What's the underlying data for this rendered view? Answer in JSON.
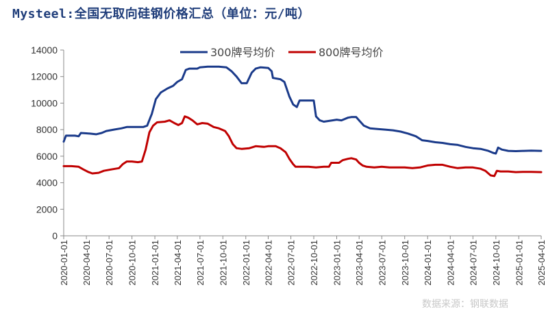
{
  "header": {
    "title": "Mysteel:全国无取向硅钢价格汇总（单位：元/吨）"
  },
  "watermark": "数据来源：钢联数据",
  "colors": {
    "series1": "#1a3a8a",
    "series2": "#c00000",
    "axis": "#888888"
  },
  "chart_data": {
    "type": "line",
    "title": "全国无取向硅钢价格汇总（单位：元/吨）",
    "xlabel": "",
    "ylabel": "",
    "ylim": [
      0,
      14000
    ],
    "yticks": [
      0,
      2000,
      4000,
      6000,
      8000,
      10000,
      12000,
      14000
    ],
    "x_range": [
      "2020-01-01",
      "2025-04-01"
    ],
    "xticks": [
      "2020-01-01",
      "2020-04-01",
      "2020-07-01",
      "2020-10-01",
      "2021-01-01",
      "2021-04-01",
      "2021-07-01",
      "2021-10-01",
      "2022-01-01",
      "2022-04-01",
      "2022-07-01",
      "2022-10-01",
      "2023-01-01",
      "2023-04-01",
      "2023-07-01",
      "2023-10-01",
      "2024-01-01",
      "2024-04-01",
      "2024-07-01",
      "2024-10-01",
      "2025-01-01",
      "2025-04-01"
    ],
    "legend_position": "top",
    "series": [
      {
        "name": "300牌号均价",
        "points": [
          [
            "2020-01-01",
            7100
          ],
          [
            "2020-01-10",
            7550
          ],
          [
            "2020-02-15",
            7550
          ],
          [
            "2020-03-01",
            7500
          ],
          [
            "2020-03-10",
            7750
          ],
          [
            "2020-04-15",
            7700
          ],
          [
            "2020-05-10",
            7650
          ],
          [
            "2020-06-01",
            7750
          ],
          [
            "2020-06-20",
            7900
          ],
          [
            "2020-07-20",
            8000
          ],
          [
            "2020-08-20",
            8100
          ],
          [
            "2020-09-10",
            8200
          ],
          [
            "2020-10-15",
            8200
          ],
          [
            "2020-11-15",
            8200
          ],
          [
            "2020-12-01",
            8300
          ],
          [
            "2020-12-20",
            9200
          ],
          [
            "2021-01-05",
            10300
          ],
          [
            "2021-01-25",
            10800
          ],
          [
            "2021-02-20",
            11100
          ],
          [
            "2021-03-15",
            11300
          ],
          [
            "2021-04-01",
            11600
          ],
          [
            "2021-04-20",
            11800
          ],
          [
            "2021-05-05",
            12500
          ],
          [
            "2021-05-20",
            12600
          ],
          [
            "2021-06-20",
            12600
          ],
          [
            "2021-07-01",
            12700
          ],
          [
            "2021-08-01",
            12750
          ],
          [
            "2021-09-15",
            12750
          ],
          [
            "2021-10-15",
            12700
          ],
          [
            "2021-11-05",
            12400
          ],
          [
            "2021-11-25",
            12000
          ],
          [
            "2021-12-15",
            11500
          ],
          [
            "2022-01-05",
            11500
          ],
          [
            "2022-01-25",
            12300
          ],
          [
            "2022-02-10",
            12600
          ],
          [
            "2022-03-01",
            12700
          ],
          [
            "2022-04-01",
            12650
          ],
          [
            "2022-04-15",
            12400
          ],
          [
            "2022-04-20",
            11900
          ],
          [
            "2022-05-20",
            11800
          ],
          [
            "2022-06-05",
            11600
          ],
          [
            "2022-06-25",
            10500
          ],
          [
            "2022-07-10",
            9900
          ],
          [
            "2022-07-25",
            9700
          ],
          [
            "2022-08-05",
            10200
          ],
          [
            "2022-09-15",
            10200
          ],
          [
            "2022-10-01",
            10200
          ],
          [
            "2022-10-10",
            9000
          ],
          [
            "2022-10-25",
            8700
          ],
          [
            "2022-11-10",
            8600
          ],
          [
            "2022-12-15",
            8700
          ],
          [
            "2023-01-01",
            8750
          ],
          [
            "2023-01-20",
            8700
          ],
          [
            "2023-02-15",
            8900
          ],
          [
            "2023-03-01",
            8950
          ],
          [
            "2023-03-20",
            8950
          ],
          [
            "2023-04-01",
            8700
          ],
          [
            "2023-04-20",
            8300
          ],
          [
            "2023-05-15",
            8100
          ],
          [
            "2023-06-15",
            8050
          ],
          [
            "2023-07-15",
            8000
          ],
          [
            "2023-08-15",
            7950
          ],
          [
            "2023-09-15",
            7850
          ],
          [
            "2023-10-15",
            7700
          ],
          [
            "2023-11-15",
            7500
          ],
          [
            "2023-12-10",
            7200
          ],
          [
            "2024-01-01",
            7150
          ],
          [
            "2024-02-01",
            7050
          ],
          [
            "2024-03-01",
            7000
          ],
          [
            "2024-04-01",
            6900
          ],
          [
            "2024-05-01",
            6850
          ],
          [
            "2024-06-01",
            6700
          ],
          [
            "2024-07-01",
            6600
          ],
          [
            "2024-08-01",
            6550
          ],
          [
            "2024-09-01",
            6400
          ],
          [
            "2024-09-20",
            6250
          ],
          [
            "2024-10-01",
            6200
          ],
          [
            "2024-10-10",
            6650
          ],
          [
            "2024-10-25",
            6500
          ],
          [
            "2024-11-20",
            6400
          ],
          [
            "2024-12-20",
            6380
          ],
          [
            "2025-01-20",
            6400
          ],
          [
            "2025-02-20",
            6420
          ],
          [
            "2025-04-01",
            6400
          ]
        ]
      },
      {
        "name": "800牌号均价",
        "points": [
          [
            "2020-01-01",
            5250
          ],
          [
            "2020-02-01",
            5250
          ],
          [
            "2020-03-01",
            5200
          ],
          [
            "2020-03-20",
            5000
          ],
          [
            "2020-04-10",
            4800
          ],
          [
            "2020-04-25",
            4700
          ],
          [
            "2020-05-20",
            4750
          ],
          [
            "2020-06-10",
            4900
          ],
          [
            "2020-07-10",
            5000
          ],
          [
            "2020-08-10",
            5100
          ],
          [
            "2020-08-25",
            5400
          ],
          [
            "2020-09-10",
            5600
          ],
          [
            "2020-10-01",
            5600
          ],
          [
            "2020-10-25",
            5550
          ],
          [
            "2020-11-10",
            5600
          ],
          [
            "2020-11-25",
            6500
          ],
          [
            "2020-12-10",
            7800
          ],
          [
            "2020-12-25",
            8300
          ],
          [
            "2021-01-10",
            8550
          ],
          [
            "2021-02-10",
            8600
          ],
          [
            "2021-03-01",
            8700
          ],
          [
            "2021-03-20",
            8500
          ],
          [
            "2021-04-05",
            8350
          ],
          [
            "2021-04-20",
            8500
          ],
          [
            "2021-05-01",
            9000
          ],
          [
            "2021-05-15",
            8900
          ],
          [
            "2021-06-01",
            8700
          ],
          [
            "2021-06-20",
            8400
          ],
          [
            "2021-07-10",
            8500
          ],
          [
            "2021-08-01",
            8450
          ],
          [
            "2021-08-25",
            8200
          ],
          [
            "2021-09-15",
            8100
          ],
          [
            "2021-10-10",
            7900
          ],
          [
            "2021-10-25",
            7500
          ],
          [
            "2021-11-10",
            6900
          ],
          [
            "2021-11-25",
            6600
          ],
          [
            "2021-12-15",
            6550
          ],
          [
            "2022-01-15",
            6600
          ],
          [
            "2022-02-10",
            6750
          ],
          [
            "2022-03-15",
            6700
          ],
          [
            "2022-04-01",
            6750
          ],
          [
            "2022-05-01",
            6750
          ],
          [
            "2022-05-20",
            6600
          ],
          [
            "2022-06-10",
            6300
          ],
          [
            "2022-06-25",
            5800
          ],
          [
            "2022-07-10",
            5400
          ],
          [
            "2022-07-20",
            5200
          ],
          [
            "2022-08-10",
            5200
          ],
          [
            "2022-09-10",
            5200
          ],
          [
            "2022-10-10",
            5150
          ],
          [
            "2022-11-10",
            5200
          ],
          [
            "2022-12-01",
            5200
          ],
          [
            "2022-12-10",
            5500
          ],
          [
            "2023-01-10",
            5500
          ],
          [
            "2023-01-25",
            5700
          ],
          [
            "2023-02-15",
            5800
          ],
          [
            "2023-03-01",
            5850
          ],
          [
            "2023-03-20",
            5750
          ],
          [
            "2023-04-01",
            5500
          ],
          [
            "2023-04-15",
            5300
          ],
          [
            "2023-05-01",
            5200
          ],
          [
            "2023-06-01",
            5150
          ],
          [
            "2023-07-01",
            5200
          ],
          [
            "2023-08-01",
            5150
          ],
          [
            "2023-09-01",
            5150
          ],
          [
            "2023-10-01",
            5150
          ],
          [
            "2023-11-01",
            5100
          ],
          [
            "2023-12-01",
            5150
          ],
          [
            "2024-01-01",
            5300
          ],
          [
            "2024-02-01",
            5350
          ],
          [
            "2024-03-01",
            5350
          ],
          [
            "2024-04-01",
            5200
          ],
          [
            "2024-05-01",
            5100
          ],
          [
            "2024-06-01",
            5150
          ],
          [
            "2024-07-01",
            5150
          ],
          [
            "2024-08-01",
            5050
          ],
          [
            "2024-08-20",
            4900
          ],
          [
            "2024-09-10",
            4550
          ],
          [
            "2024-09-25",
            4500
          ],
          [
            "2024-10-05",
            4900
          ],
          [
            "2024-10-20",
            4850
          ],
          [
            "2024-11-20",
            4850
          ],
          [
            "2024-12-20",
            4800
          ],
          [
            "2025-01-20",
            4820
          ],
          [
            "2025-02-20",
            4820
          ],
          [
            "2025-04-01",
            4800
          ]
        ]
      }
    ]
  }
}
